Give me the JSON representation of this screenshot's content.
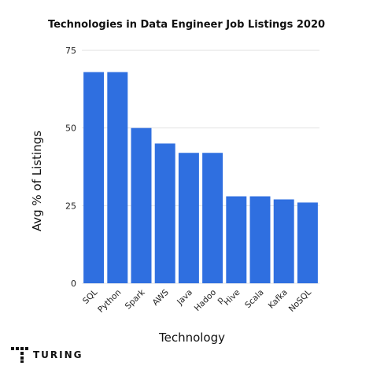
{
  "chart_data": {
    "type": "bar",
    "title": "Technologies in Data  Engineer Job Listings 2020",
    "xlabel": "Technology",
    "ylabel": "Avg % of Listings",
    "categories": [
      "SQL",
      "Python",
      "Spark",
      "AWS",
      "Java",
      "Hadoo p",
      "Hive",
      "Scala",
      "Kafka",
      "NoSQL"
    ],
    "category_lines": [
      [
        "SQL"
      ],
      [
        "Python"
      ],
      [
        "Spark"
      ],
      [
        "AWS"
      ],
      [
        "Java"
      ],
      [
        "Hadoo",
        "p"
      ],
      [
        "Hive"
      ],
      [
        "Scala"
      ],
      [
        "Kafka"
      ],
      [
        "NoSQL"
      ]
    ],
    "values": [
      68,
      68,
      50,
      45,
      42,
      42,
      28,
      28,
      27,
      26
    ],
    "ylim": [
      0,
      75
    ],
    "yticks": [
      0,
      25,
      50,
      75
    ],
    "grid": true,
    "bar_color": "#2f6fe0",
    "grid_color": "#e2e2e2"
  },
  "brand": {
    "name": "TURING",
    "logo_icon": "turing-logo-icon"
  }
}
